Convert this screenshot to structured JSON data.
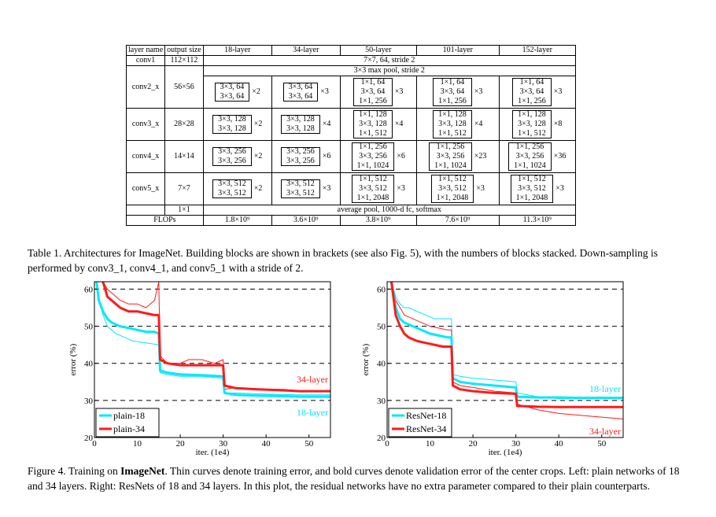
{
  "table": {
    "headers": [
      "layer name",
      "output size",
      "18-layer",
      "34-layer",
      "50-layer",
      "101-layer",
      "152-layer"
    ],
    "conv1": {
      "name": "conv1",
      "size": "112×112",
      "spec": "7×7, 64, stride 2"
    },
    "maxpool": "3×3 max pool, stride 2",
    "blocks": [
      {
        "name": "conv2_x",
        "size": "56×56",
        "c18": [
          "3×3, 64",
          "3×3, 64"
        ],
        "n18": "×2",
        "c34": [
          "3×3, 64",
          "3×3, 64"
        ],
        "n34": "×3",
        "b": [
          "1×1, 64",
          "3×3, 64",
          "1×1, 256"
        ],
        "n50": "×3",
        "n101": "×3",
        "n152": "×3"
      },
      {
        "name": "conv3_x",
        "size": "28×28",
        "c18": [
          "3×3, 128",
          "3×3, 128"
        ],
        "n18": "×2",
        "c34": [
          "3×3, 128",
          "3×3, 128"
        ],
        "n34": "×4",
        "b": [
          "1×1, 128",
          "3×3, 128",
          "1×1, 512"
        ],
        "n50": "×4",
        "n101": "×4",
        "n152": "×8"
      },
      {
        "name": "conv4_x",
        "size": "14×14",
        "c18": [
          "3×3, 256",
          "3×3, 256"
        ],
        "n18": "×2",
        "c34": [
          "3×3, 256",
          "3×3, 256"
        ],
        "n34": "×6",
        "b": [
          "1×1, 256",
          "3×3, 256",
          "1×1, 1024"
        ],
        "n50": "×6",
        "n101": "×23",
        "n152": "×36"
      },
      {
        "name": "conv5_x",
        "size": "7×7",
        "c18": [
          "3×3, 512",
          "3×3, 512"
        ],
        "n18": "×2",
        "c34": [
          "3×3, 512",
          "3×3, 512"
        ],
        "n34": "×3",
        "b": [
          "1×1, 512",
          "3×3, 512",
          "1×1, 2048"
        ],
        "n50": "×3",
        "n101": "×3",
        "n152": "×3"
      }
    ],
    "pool": {
      "size": "1×1",
      "spec": "average pool, 1000-d fc, softmax"
    },
    "flops": {
      "label": "FLOPs",
      "values": [
        "1.8×10⁹",
        "3.6×10⁹",
        "3.8×10⁹",
        "7.6×10⁹",
        "11.3×10⁹"
      ]
    }
  },
  "table_caption": "Table 1. Architectures for ImageNet. Building blocks are shown in brackets (see also Fig. 5), with the numbers of blocks stacked. Down-sampling is performed by conv3_1, conv4_1, and conv5_1 with a stride of 2.",
  "figure_caption": {
    "prefix": "Figure 4. Training on ",
    "bold": "ImageNet",
    "rest": ". Thin curves denote training error, and bold curves denote validation error of the center crops. Left: plain networks of 18 and 34 layers. Right: ResNets of 18 and 34 layers. In this plot, the residual networks have no extra parameter compared to their plain counterparts."
  },
  "colors": {
    "cyan": "#00e8ff",
    "red": "#ff1a1a"
  },
  "chart_data": [
    {
      "type": "line",
      "xlabel": "iter. (1e4)",
      "ylabel": "error (%)",
      "xlim": [
        0,
        55
      ],
      "ylim": [
        20,
        62
      ],
      "xticks": [
        0,
        10,
        20,
        30,
        40,
        50
      ],
      "yticks": [
        20,
        30,
        40,
        50,
        60
      ],
      "grid": "dashed horizontal at 30, 40, 50, 60",
      "legend": "bottom-left",
      "legend_entries": [
        "plain-18",
        "plain-34"
      ],
      "annotations": [
        "34-layer",
        "18-layer"
      ],
      "series": [
        {
          "name": "plain-18",
          "kind": "train",
          "color": "cyan",
          "width": 1,
          "x": [
            0.5,
            1,
            2,
            3,
            5,
            7,
            9,
            12,
            15,
            15.3,
            17,
            20,
            25,
            30,
            30.3,
            33,
            38,
            43,
            48,
            53,
            55
          ],
          "y": [
            62,
            58,
            53,
            50,
            48,
            47,
            46,
            45.5,
            45,
            37.5,
            37,
            36.5,
            36.5,
            36,
            32,
            32,
            31.8,
            31.6,
            31.5,
            31.5,
            31.5
          ]
        },
        {
          "name": "plain-18",
          "kind": "val",
          "color": "cyan",
          "width": 3,
          "x": [
            0.5,
            1,
            2,
            3,
            4,
            6,
            8,
            10,
            12,
            14,
            15,
            15.3,
            17,
            20,
            25,
            30,
            30.3,
            33,
            38,
            43,
            48,
            53,
            55
          ],
          "y": [
            62,
            57,
            54,
            52,
            51,
            50,
            49.5,
            49,
            48.5,
            48.5,
            48,
            38,
            37.5,
            37,
            36.8,
            36.5,
            32,
            31.5,
            31.3,
            31.2,
            31,
            31,
            31
          ]
        },
        {
          "name": "plain-34",
          "kind": "train",
          "color": "red",
          "width": 1,
          "x": [
            2,
            3,
            4,
            6,
            8,
            10,
            12,
            14,
            15,
            15.3,
            17,
            20,
            22,
            25,
            28,
            30,
            30.3,
            33,
            36,
            40,
            44,
            48,
            52,
            55
          ],
          "y": [
            62,
            60,
            59,
            57,
            56,
            56,
            55,
            57,
            62,
            42,
            40,
            40,
            41,
            41,
            40,
            41,
            33,
            33.5,
            33,
            33,
            33,
            32.5,
            32.5,
            32.5
          ]
        },
        {
          "name": "plain-34",
          "kind": "val",
          "color": "red",
          "width": 3,
          "x": [
            2,
            3,
            4,
            5,
            6,
            8,
            10,
            12,
            14,
            15,
            15.3,
            17,
            20,
            25,
            30,
            30.3,
            33,
            38,
            43,
            48,
            53,
            55
          ],
          "y": [
            62,
            58,
            57,
            56,
            55,
            54,
            54,
            53.5,
            53,
            53,
            41,
            40,
            39.5,
            39.5,
            39.5,
            34,
            33.3,
            33,
            32.8,
            32.5,
            32.5,
            32.5
          ]
        }
      ]
    },
    {
      "type": "line",
      "xlabel": "iter. (1e4)",
      "ylabel": "error (%)",
      "xlim": [
        0,
        55
      ],
      "ylim": [
        20,
        62
      ],
      "xticks": [
        0,
        10,
        20,
        30,
        40,
        50
      ],
      "yticks": [
        20,
        30,
        40,
        50,
        60
      ],
      "grid": "dashed horizontal at 30, 40, 50, 60",
      "legend": "bottom-left",
      "legend_entries": [
        "ResNet-18",
        "ResNet-34"
      ],
      "annotations": [
        "18-layer",
        "34-layer"
      ],
      "series": [
        {
          "name": "ResNet-18",
          "kind": "train",
          "color": "cyan",
          "width": 1,
          "x": [
            1,
            2,
            3,
            4,
            5,
            7,
            9,
            11,
            13,
            15,
            15.3,
            17,
            20,
            25,
            30,
            30.3,
            35,
            40,
            45,
            50,
            55
          ],
          "y": [
            62,
            58,
            56,
            55,
            55,
            54,
            53,
            52,
            52,
            52,
            37,
            36.5,
            36,
            35.5,
            35,
            32,
            31,
            30.5,
            30.5,
            30.5,
            30.5
          ]
        },
        {
          "name": "ResNet-18",
          "kind": "val",
          "color": "cyan",
          "width": 3,
          "x": [
            1,
            2,
            3,
            4,
            6,
            8,
            10,
            12,
            14,
            15,
            15.3,
            17,
            20,
            25,
            30,
            30.3,
            35,
            40,
            45,
            50,
            55
          ],
          "y": [
            62,
            55,
            52,
            51,
            50,
            49,
            48,
            47.5,
            47,
            47,
            36,
            35,
            34.5,
            34,
            33.5,
            31,
            30.8,
            30.8,
            30.7,
            30.7,
            30.7
          ]
        },
        {
          "name": "ResNet-34",
          "kind": "train",
          "color": "red",
          "width": 1,
          "x": [
            1,
            2,
            3,
            4,
            6,
            8,
            10,
            12,
            14,
            15,
            15.3,
            17,
            20,
            25,
            30,
            30.3,
            35,
            40,
            45,
            50,
            55
          ],
          "y": [
            62,
            57,
            55,
            53,
            52,
            51,
            50,
            49.5,
            49,
            49,
            35,
            34,
            33.5,
            32.5,
            32,
            29,
            27.5,
            26.5,
            26,
            25.5,
            25
          ]
        },
        {
          "name": "ResNet-34",
          "kind": "val",
          "color": "red",
          "width": 3,
          "x": [
            1,
            2,
            3,
            4,
            5,
            7,
            9,
            11,
            13,
            15,
            15.3,
            17,
            20,
            25,
            30,
            30.3,
            35,
            40,
            45,
            50,
            55
          ],
          "y": [
            62,
            53,
            50,
            48,
            47,
            46,
            45.5,
            45,
            44.5,
            44.5,
            34,
            33,
            32.5,
            32,
            31.8,
            28.5,
            28.3,
            28.2,
            28.2,
            28.2,
            28.2
          ]
        }
      ]
    }
  ]
}
